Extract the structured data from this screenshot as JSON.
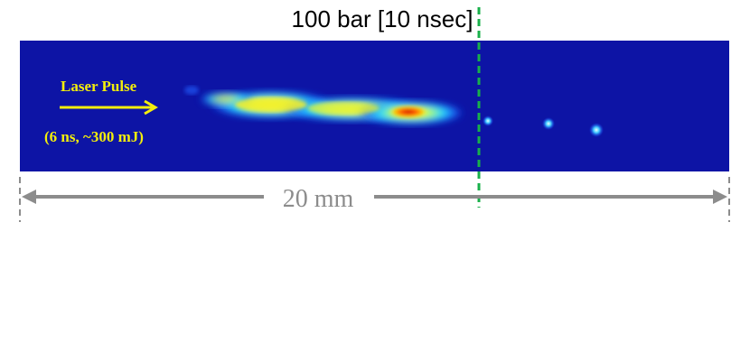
{
  "title": "100 bar [10 nsec]",
  "laser": {
    "label": "Laser Pulse",
    "params": "(6 ns, ~300 mJ)",
    "text_color": "#f3ee0c"
  },
  "scale_bar": {
    "label": "20 mm",
    "color": "#8c8c8c"
  },
  "colors": {
    "background": "#0d14a5",
    "divider": "#18b04a"
  }
}
